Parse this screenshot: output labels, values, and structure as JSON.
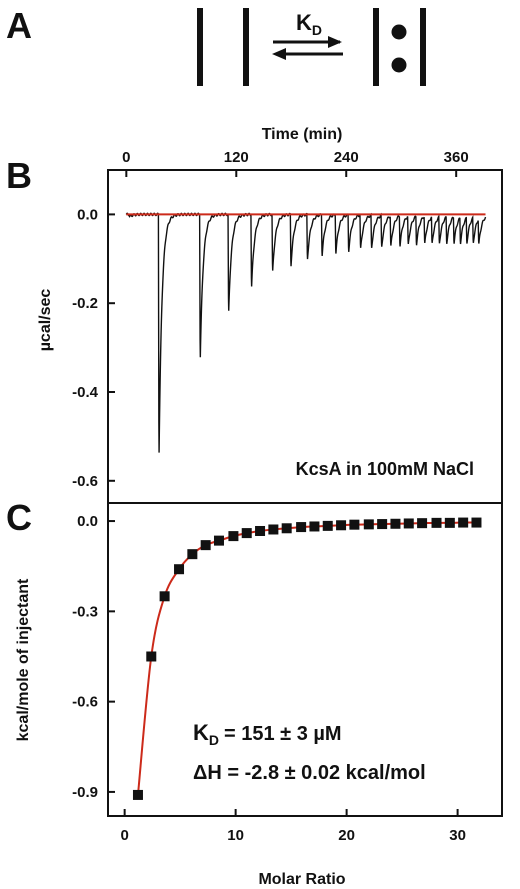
{
  "panel_a": {
    "letter": "A",
    "equilibrium_label": "K",
    "equilibrium_subscript": "D"
  },
  "chart_data": [
    {
      "panel": "B",
      "type": "line",
      "title": "",
      "xlabel": "Time (min)",
      "ylabel": "µcal/sec",
      "xlim": [
        -20,
        410
      ],
      "ylim": [
        -0.65,
        0.1
      ],
      "x_ticks": [
        0,
        120,
        240,
        360
      ],
      "y_ticks": [
        0.0,
        -0.2,
        -0.4,
        -0.6
      ],
      "x_tick_labels": [
        "0",
        "120",
        "240",
        "360"
      ],
      "y_tick_labels": [
        "0.0",
        "-0.2",
        "-0.4",
        "-0.6"
      ],
      "annotation": "KcsA in 100mM NaCl",
      "baseline_color": "#cc2a1a",
      "trace_color": "#111111",
      "injection_times": [
        3,
        35,
        80,
        111,
        136,
        159,
        179,
        197,
        213,
        228,
        242,
        255,
        267,
        278,
        288,
        298,
        307,
        316,
        325,
        333,
        341,
        349,
        357,
        364,
        371,
        378,
        384
      ],
      "peak_values": [
        -0.005,
        -0.56,
        -0.335,
        -0.23,
        -0.17,
        -0.135,
        -0.12,
        -0.105,
        -0.095,
        -0.09,
        -0.085,
        -0.08,
        -0.078,
        -0.075,
        -0.072,
        -0.07,
        -0.068,
        -0.066,
        -0.065,
        -0.064,
        -0.063,
        -0.062,
        -0.061,
        -0.06,
        -0.06,
        -0.06,
        -0.06
      ]
    },
    {
      "panel": "C",
      "type": "scatter",
      "title": "",
      "xlabel": "Molar Ratio",
      "ylabel": "kcal/mole of injectant",
      "xlim": [
        -1.5,
        34
      ],
      "ylim": [
        -0.98,
        0.06
      ],
      "x_ticks": [
        0,
        10,
        20,
        30
      ],
      "y_ticks": [
        0.0,
        -0.3,
        -0.6,
        -0.9
      ],
      "x_tick_labels": [
        "0",
        "10",
        "20",
        "30"
      ],
      "y_tick_labels": [
        "0.0",
        "-0.3",
        "-0.6",
        "-0.9"
      ],
      "fit_color": "#cc2a1a",
      "marker_color": "#111111",
      "points": {
        "x": [
          1.2,
          2.4,
          3.6,
          4.9,
          6.1,
          7.3,
          8.5,
          9.8,
          11.0,
          12.2,
          13.4,
          14.6,
          15.9,
          17.1,
          18.3,
          19.5,
          20.7,
          22.0,
          23.2,
          24.4,
          25.6,
          26.8,
          28.1,
          29.3,
          30.5,
          31.7
        ],
        "y": [
          -0.91,
          -0.45,
          -0.25,
          -0.16,
          -0.11,
          -0.08,
          -0.065,
          -0.05,
          -0.04,
          -0.033,
          -0.028,
          -0.024,
          -0.02,
          -0.018,
          -0.016,
          -0.014,
          -0.012,
          -0.011,
          -0.01,
          -0.009,
          -0.008,
          -0.007,
          -0.006,
          -0.006,
          -0.005,
          -0.005
        ]
      },
      "annotation_kd_symbol": "K",
      "annotation_kd_subscript": "D",
      "annotation_kd_value": "= 151 ± 3 µM",
      "annotation_dh": "ΔH = -2.8 ± 0.02 kcal/mol"
    }
  ]
}
